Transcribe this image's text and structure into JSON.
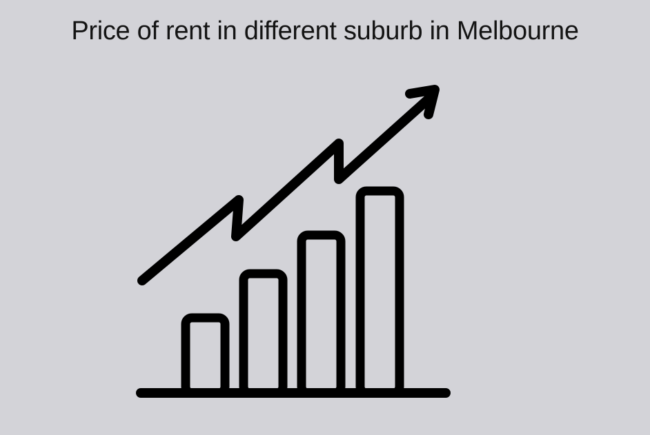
{
  "title": "Price of rent in different suburb in Melbourne",
  "illustration": {
    "icon": "growth-bar-chart-arrow-icon",
    "stroke_color": "#000000",
    "background_color": "#d3d3d8",
    "bar_count": 4,
    "trend": "upward"
  }
}
